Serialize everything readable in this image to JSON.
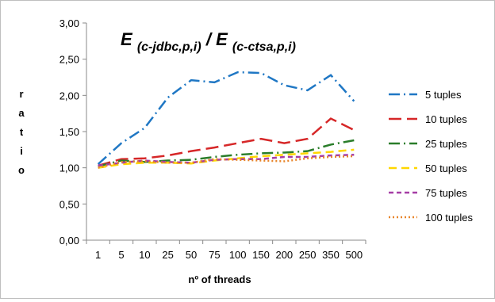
{
  "chart_data": {
    "type": "line",
    "title_main": "E",
    "title_sub1": "(c-jdbc,p,i)",
    "title_sep": "/",
    "title_sub2": "(c-ctsa,p,i)",
    "xlabel": "nº of threads",
    "ylabel": "ratio",
    "categories": [
      "1",
      "5",
      "10",
      "25",
      "50",
      "75",
      "100",
      "150",
      "200",
      "250",
      "350",
      "500"
    ],
    "yticks": [
      "0,00",
      "0,50",
      "1,00",
      "1,50",
      "2,00",
      "2,50",
      "3,00"
    ],
    "ylim": [
      0,
      3
    ],
    "grid": false,
    "legend_position": "right",
    "series": [
      {
        "name": "5 tuples",
        "color": "#1f77c4",
        "dash": "dashdot",
        "values": [
          1.05,
          1.34,
          1.55,
          1.97,
          2.21,
          2.18,
          2.32,
          2.31,
          2.14,
          2.07,
          2.28,
          1.92
        ]
      },
      {
        "name": "10 tuples",
        "color": "#d62728",
        "dash": "longdash",
        "values": [
          1.03,
          1.12,
          1.13,
          1.17,
          1.23,
          1.28,
          1.34,
          1.4,
          1.34,
          1.4,
          1.68,
          1.52
        ]
      },
      {
        "name": "25 tuples",
        "color": "#2a7d2a",
        "dash": "dashdot",
        "values": [
          1.02,
          1.1,
          1.08,
          1.1,
          1.11,
          1.15,
          1.18,
          1.2,
          1.21,
          1.23,
          1.32,
          1.38
        ]
      },
      {
        "name": "50 tuples",
        "color": "#ffd700",
        "dash": "dash",
        "values": [
          1.0,
          1.05,
          1.07,
          1.07,
          1.06,
          1.1,
          1.13,
          1.16,
          1.18,
          1.2,
          1.22,
          1.25
        ]
      },
      {
        "name": "75 tuples",
        "color": "#a63ea6",
        "dash": "shortdash",
        "values": [
          1.03,
          1.07,
          1.1,
          1.08,
          1.07,
          1.11,
          1.12,
          1.12,
          1.15,
          1.15,
          1.17,
          1.18
        ]
      },
      {
        "name": "100 tuples",
        "color": "#e8852a",
        "dash": "dot",
        "values": [
          1.0,
          1.08,
          1.09,
          1.07,
          1.07,
          1.12,
          1.11,
          1.1,
          1.09,
          1.13,
          1.15,
          1.16
        ]
      }
    ]
  }
}
